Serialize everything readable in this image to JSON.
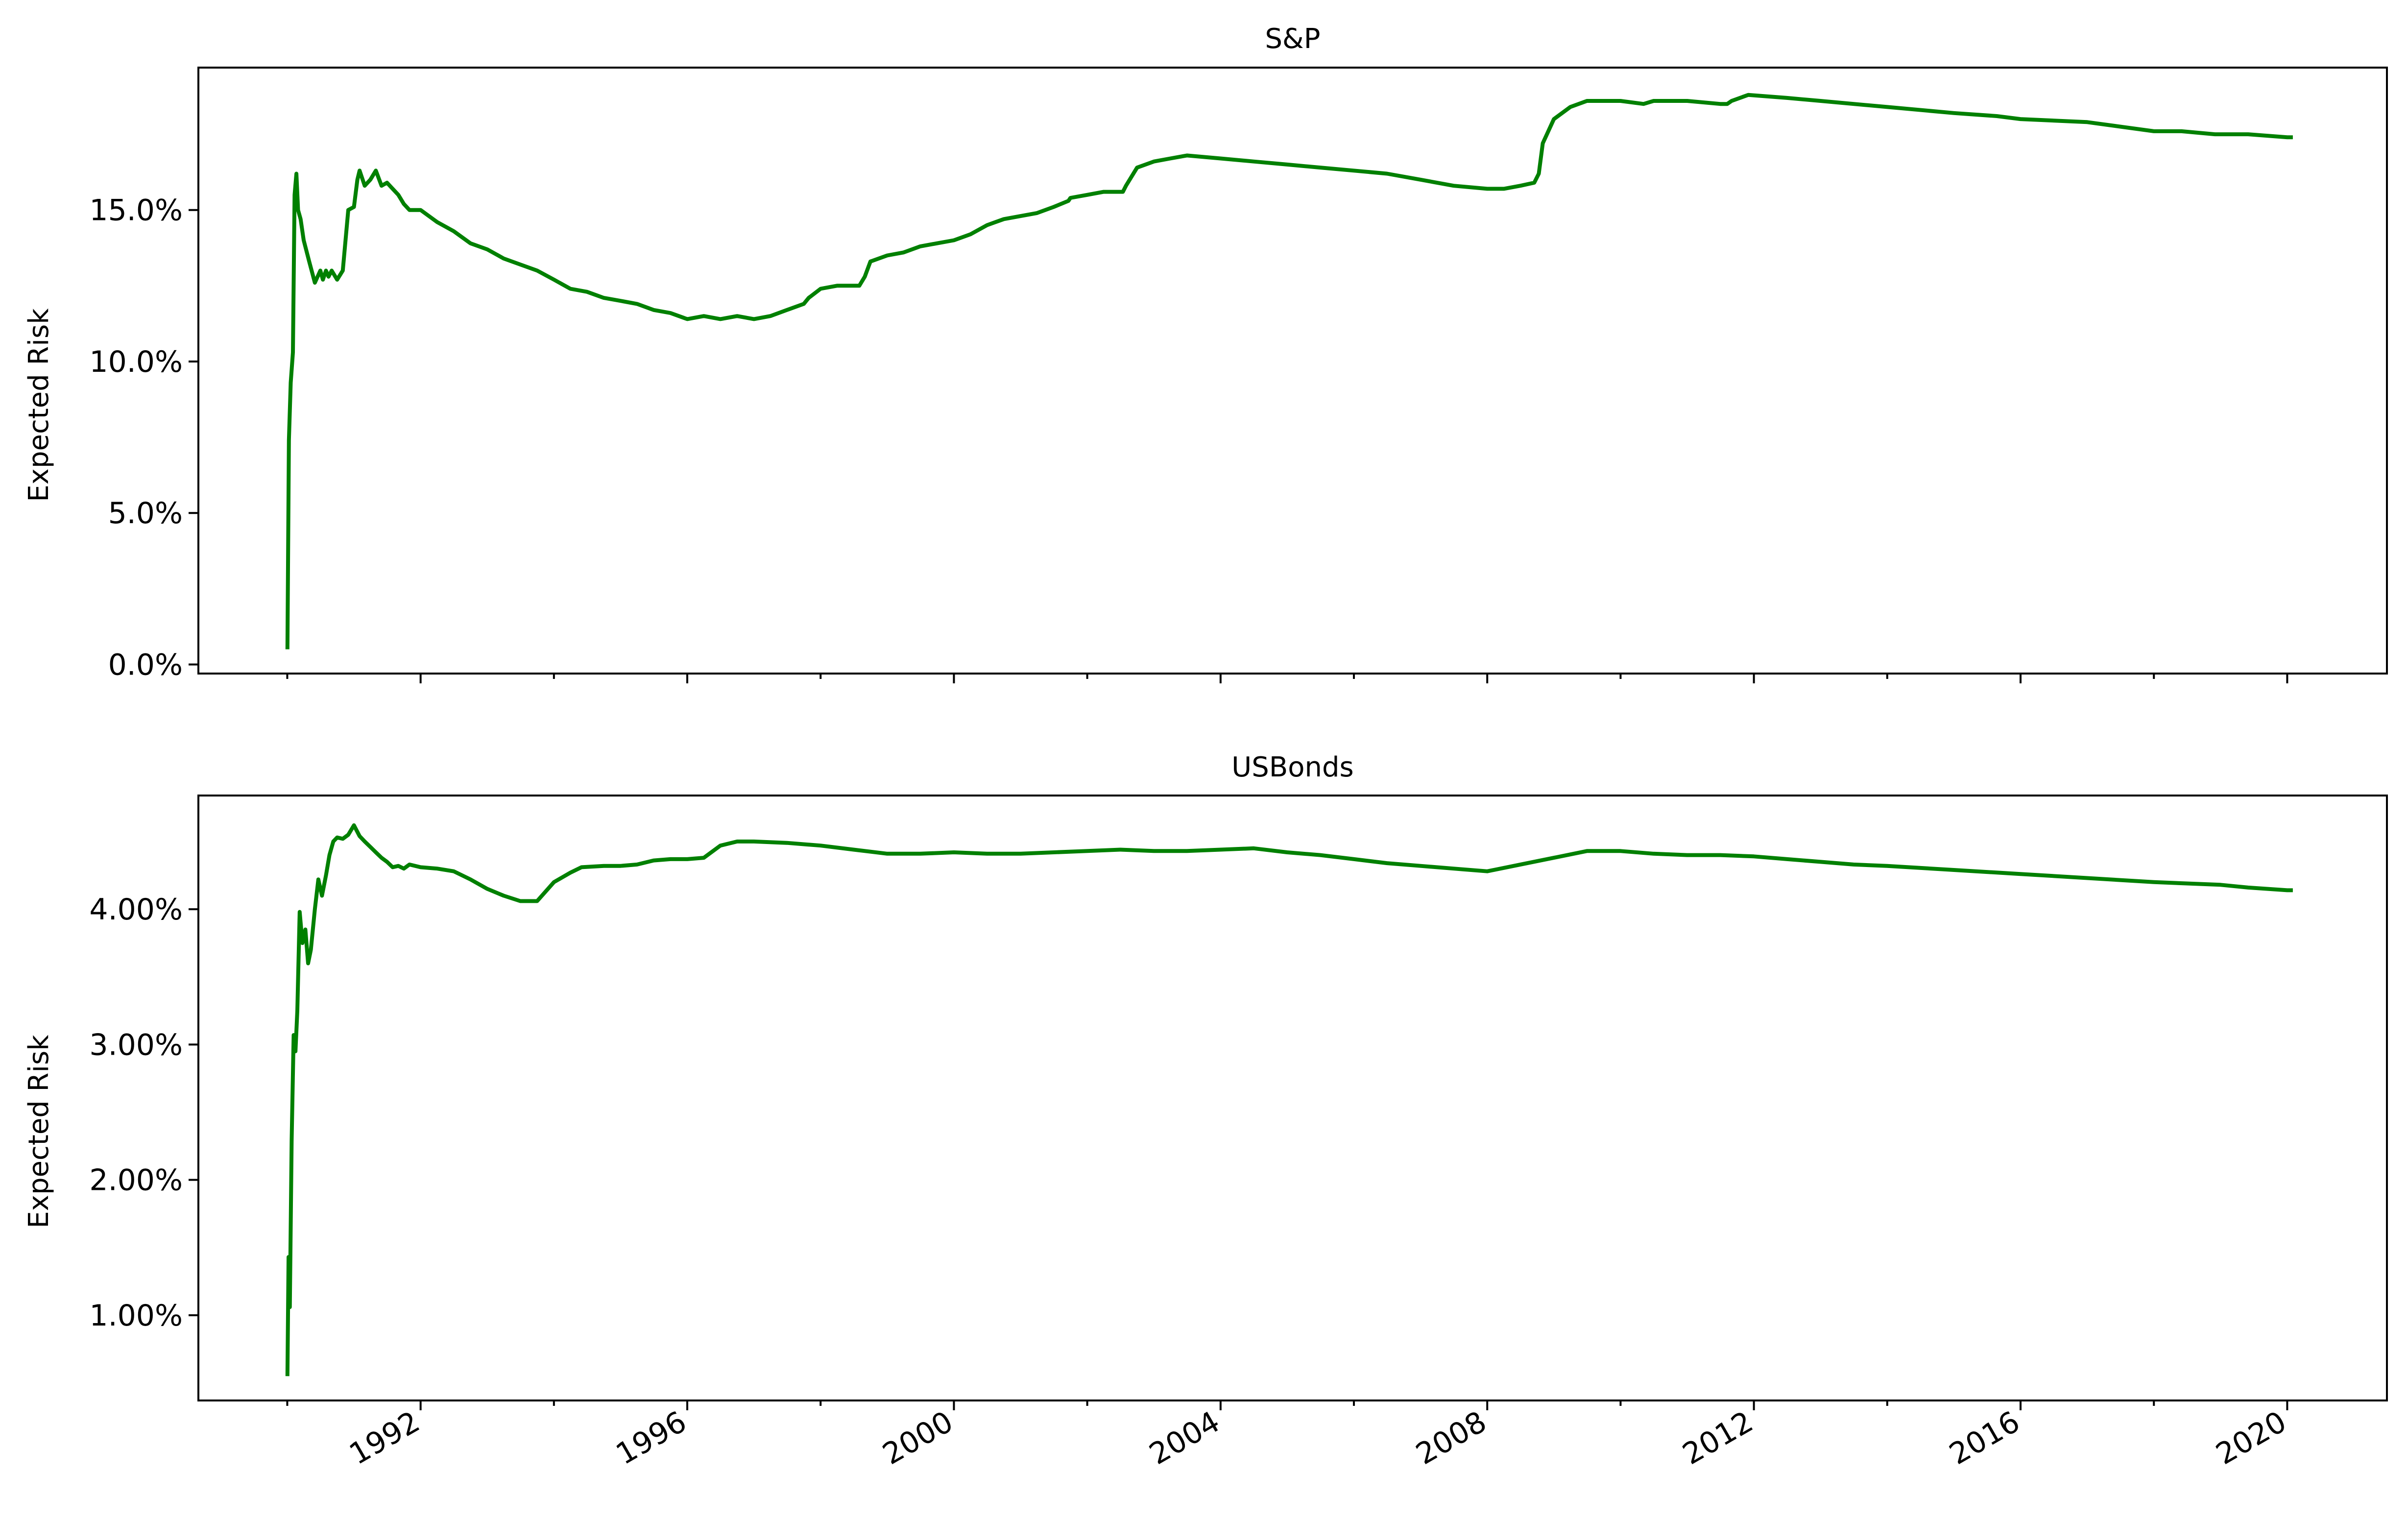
{
  "chart_data": [
    {
      "type": "line",
      "title": "S&P",
      "ylabel": "Expected Risk",
      "xlabel": "",
      "x_axis": "date",
      "xlim": [
        "1988-09-01",
        "2021-07-01"
      ],
      "xticks": [
        "1992",
        "1996",
        "2000",
        "2004",
        "2008",
        "2012",
        "2016",
        "2020"
      ],
      "ylim": [
        -0.003,
        0.197
      ],
      "yticks": [
        "0.0%",
        "5.0%",
        "10.0%",
        "15.0%"
      ],
      "grid": false,
      "legend": "none",
      "color": "#008000",
      "series": [
        {
          "x": [
            "1990-01-02",
            "1990-01-10",
            "1990-01-20",
            "1990-02-01",
            "1990-02-10",
            "1990-02-20",
            "1990-03-01",
            "1990-03-15",
            "1990-04-01",
            "1990-05-01",
            "1990-06-01",
            "1990-07-01",
            "1990-07-15",
            "1990-08-01",
            "1990-08-15",
            "1990-09-01",
            "1990-10-01",
            "1990-11-01",
            "1990-12-01",
            "1991-01-01",
            "1991-01-20",
            "1991-02-01",
            "1991-03-01",
            "1991-04-01",
            "1991-05-01",
            "1991-06-01",
            "1991-07-01",
            "1991-08-01",
            "1991-09-01",
            "1991-10-01",
            "1991-11-01",
            "1992-01-01",
            "1992-04-01",
            "1992-07-01",
            "1992-10-01",
            "1993-01-01",
            "1993-04-01",
            "1993-07-01",
            "1993-10-01",
            "1994-01-01",
            "1994-04-01",
            "1994-07-01",
            "1994-10-01",
            "1995-01-01",
            "1995-04-01",
            "1995-07-01",
            "1995-10-01",
            "1996-01-01",
            "1996-04-01",
            "1996-07-01",
            "1996-10-01",
            "1997-01-01",
            "1997-04-01",
            "1997-07-01",
            "1997-10-01",
            "1997-10-28",
            "1998-01-01",
            "1998-04-01",
            "1998-08-01",
            "1998-08-31",
            "1998-10-01",
            "1999-01-01",
            "1999-04-01",
            "1999-07-01",
            "1999-10-01",
            "2000-01-01",
            "2000-04-01",
            "2000-07-01",
            "2000-10-01",
            "2001-01-01",
            "2001-04-01",
            "2001-07-01",
            "2001-09-20",
            "2001-10-01",
            "2002-01-01",
            "2002-04-01",
            "2002-07-15",
            "2002-08-01",
            "2002-10-01",
            "2003-01-01",
            "2003-04-01",
            "2003-07-01",
            "2004-01-01",
            "2004-07-01",
            "2005-01-01",
            "2005-07-01",
            "2006-01-01",
            "2006-07-01",
            "2007-01-01",
            "2007-07-01",
            "2008-01-01",
            "2008-04-01",
            "2008-07-01",
            "2008-09-15",
            "2008-10-10",
            "2008-11-01",
            "2009-01-01",
            "2009-04-01",
            "2009-07-01",
            "2010-01-01",
            "2010-05-07",
            "2010-07-01",
            "2011-01-01",
            "2011-07-01",
            "2011-08-08",
            "2011-09-01",
            "2011-12-01",
            "2012-07-01",
            "2013-01-01",
            "2014-01-01",
            "2015-01-01",
            "2015-08-24",
            "2016-01-01",
            "2017-01-01",
            "2018-01-01",
            "2018-02-05",
            "2018-06-01",
            "2018-12-01",
            "2019-01-01",
            "2019-06-01",
            "2020-01-01",
            "2020-02-01"
          ],
          "y": [
            0.005,
            0.074,
            0.093,
            0.103,
            0.155,
            0.162,
            0.15,
            0.147,
            0.14,
            0.133,
            0.126,
            0.13,
            0.127,
            0.13,
            0.128,
            0.13,
            0.127,
            0.13,
            0.15,
            0.151,
            0.16,
            0.163,
            0.158,
            0.16,
            0.163,
            0.158,
            0.159,
            0.157,
            0.155,
            0.152,
            0.15,
            0.15,
            0.146,
            0.143,
            0.139,
            0.137,
            0.134,
            0.132,
            0.13,
            0.127,
            0.124,
            0.123,
            0.121,
            0.12,
            0.119,
            0.117,
            0.116,
            0.114,
            0.115,
            0.114,
            0.115,
            0.114,
            0.115,
            0.117,
            0.119,
            0.121,
            0.124,
            0.125,
            0.125,
            0.128,
            0.133,
            0.135,
            0.136,
            0.138,
            0.139,
            0.14,
            0.142,
            0.145,
            0.147,
            0.148,
            0.149,
            0.151,
            0.153,
            0.154,
            0.155,
            0.156,
            0.156,
            0.158,
            0.164,
            0.166,
            0.167,
            0.168,
            0.167,
            0.166,
            0.165,
            0.164,
            0.163,
            0.162,
            0.16,
            0.158,
            0.157,
            0.157,
            0.158,
            0.159,
            0.162,
            0.172,
            0.18,
            0.184,
            0.186,
            0.186,
            0.185,
            0.186,
            0.186,
            0.185,
            0.185,
            0.186,
            0.188,
            0.187,
            0.186,
            0.184,
            0.182,
            0.181,
            0.18,
            0.179,
            0.176,
            0.176,
            0.176,
            0.175,
            0.175,
            0.175,
            0.174,
            0.174
          ]
        }
      ]
    },
    {
      "type": "line",
      "title": "USBonds",
      "ylabel": "Expected Risk",
      "xlabel": "",
      "x_axis": "date",
      "xlim": [
        "1988-09-01",
        "2021-07-01"
      ],
      "xticks": [
        "1992",
        "1996",
        "2000",
        "2004",
        "2008",
        "2012",
        "2016",
        "2020"
      ],
      "ylim": [
        0.0037,
        0.0484
      ],
      "yticks": [
        "1.00%",
        "2.00%",
        "3.00%",
        "4.00%"
      ],
      "grid": false,
      "legend": "none",
      "color": "#008000",
      "series": [
        {
          "x": [
            "1990-01-02",
            "1990-01-08",
            "1990-01-15",
            "1990-01-25",
            "1990-02-05",
            "1990-02-15",
            "1990-02-25",
            "1990-03-10",
            "1990-03-25",
            "1990-04-10",
            "1990-04-25",
            "1990-05-10",
            "1990-06-01",
            "1990-06-20",
            "1990-07-10",
            "1990-08-01",
            "1990-08-20",
            "1990-09-10",
            "1990-10-01",
            "1990-11-01",
            "1990-12-01",
            "1991-01-01",
            "1991-02-01",
            "1991-03-01",
            "1991-04-01",
            "1991-05-01",
            "1991-06-01",
            "1991-07-01",
            "1991-08-01",
            "1991-09-01",
            "1991-10-01",
            "1991-11-01",
            "1992-01-01",
            "1992-04-01",
            "1992-07-01",
            "1992-10-01",
            "1993-01-01",
            "1993-04-01",
            "1993-07-01",
            "1993-10-01",
            "1994-01-01",
            "1994-04-01",
            "1994-06-01",
            "1994-10-01",
            "1995-01-01",
            "1995-04-01",
            "1995-07-01",
            "1995-10-01",
            "1996-01-01",
            "1996-04-01",
            "1996-07-01",
            "1996-10-01",
            "1997-01-01",
            "1997-07-01",
            "1998-01-01",
            "1998-07-01",
            "1999-01-01",
            "1999-07-01",
            "2000-01-01",
            "2000-07-01",
            "2001-01-01",
            "2001-07-01",
            "2002-01-01",
            "2002-07-01",
            "2003-01-01",
            "2003-07-01",
            "2004-01-01",
            "2004-07-01",
            "2005-01-01",
            "2005-07-01",
            "2006-01-01",
            "2006-07-01",
            "2007-01-01",
            "2007-07-01",
            "2008-01-01",
            "2008-07-01",
            "2009-01-01",
            "2009-07-01",
            "2010-01-01",
            "2010-07-01",
            "2011-01-01",
            "2011-07-01",
            "2012-01-01",
            "2012-07-01",
            "2013-01-01",
            "2013-07-01",
            "2014-01-01",
            "2015-01-01",
            "2016-01-01",
            "2017-01-01",
            "2018-01-01",
            "2019-01-01",
            "2019-06-01",
            "2020-01-01",
            "2020-02-01"
          ],
          "y": [
            0.0055,
            0.0143,
            0.0106,
            0.0229,
            0.0307,
            0.0295,
            0.0325,
            0.0398,
            0.0375,
            0.0385,
            0.036,
            0.037,
            0.04,
            0.0422,
            0.041,
            0.0425,
            0.044,
            0.045,
            0.0453,
            0.0452,
            0.0455,
            0.0462,
            0.0454,
            0.045,
            0.0446,
            0.0442,
            0.0438,
            0.0435,
            0.0431,
            0.0432,
            0.043,
            0.0433,
            0.0431,
            0.043,
            0.0428,
            0.0422,
            0.0415,
            0.041,
            0.0406,
            0.0406,
            0.042,
            0.0427,
            0.0431,
            0.0432,
            0.0432,
            0.0433,
            0.0436,
            0.0437,
            0.0437,
            0.0438,
            0.0447,
            0.045,
            0.045,
            0.0449,
            0.0447,
            0.0444,
            0.0441,
            0.0441,
            0.0442,
            0.0441,
            0.0441,
            0.0442,
            0.0443,
            0.0444,
            0.0443,
            0.0443,
            0.0444,
            0.0445,
            0.0442,
            0.044,
            0.0437,
            0.0434,
            0.0432,
            0.043,
            0.0428,
            0.0433,
            0.0438,
            0.0443,
            0.0443,
            0.0441,
            0.044,
            0.044,
            0.0439,
            0.0437,
            0.0435,
            0.0433,
            0.0432,
            0.0429,
            0.0426,
            0.0423,
            0.042,
            0.0418,
            0.0416,
            0.0414,
            0.0414
          ]
        }
      ]
    }
  ]
}
